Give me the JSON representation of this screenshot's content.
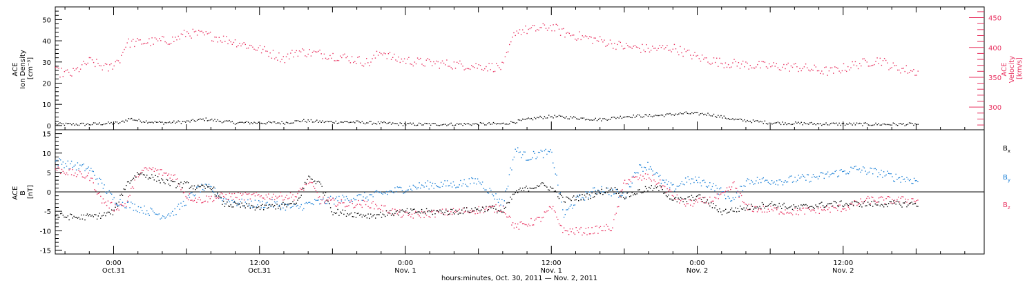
{
  "colors": {
    "density": "#000000",
    "velocity": "#e8305f",
    "bx": "#000000",
    "by": "#1a7fd6",
    "bz": "#e8305f"
  },
  "xaxis": {
    "title": "hours:minutes, Oct. 30, 2011 — Nov. 2, 2011",
    "range_hours": [
      -4.8,
      71.6
    ],
    "ticks": [
      {
        "h": 0,
        "time": "0:00",
        "date": "Oct.31"
      },
      {
        "h": 12,
        "time": "12:00",
        "date": "Oct.31"
      },
      {
        "h": 24,
        "time": "0:00",
        "date": "Nov. 1"
      },
      {
        "h": 36,
        "time": "12:00",
        "date": "Nov. 1"
      },
      {
        "h": 48,
        "time": "0:00",
        "date": "Nov. 2"
      },
      {
        "h": 60,
        "time": "12:00",
        "date": "Nov. 2"
      }
    ]
  },
  "chart_data": [
    {
      "type": "scatter",
      "ylabel_lines": [
        "ACE",
        "Ion Density",
        "[cm⁻³]"
      ],
      "y2label_lines": [
        "ACE",
        "Velocity",
        "[km/s]"
      ],
      "ylim": [
        -2,
        56
      ],
      "yticks": [
        0,
        10,
        20,
        30,
        40,
        50
      ],
      "y2lim": [
        262,
        468
      ],
      "y2ticks": [
        300,
        350,
        400,
        450
      ],
      "series": [
        {
          "key": "density",
          "axis": "left",
          "color": "#000000",
          "noise": 0.7,
          "points": [
            [
              -4.8,
              0.8
            ],
            [
              -2,
              0.8
            ],
            [
              0.5,
              1.5
            ],
            [
              1.3,
              3.5
            ],
            [
              2,
              2.5
            ],
            [
              4,
              1.5
            ],
            [
              6,
              2
            ],
            [
              7.5,
              3.2
            ],
            [
              8.5,
              2.5
            ],
            [
              10,
              1.5
            ],
            [
              14,
              1.5
            ],
            [
              15.5,
              2.5
            ],
            [
              17,
              2
            ],
            [
              20,
              1.8
            ],
            [
              24,
              0.8
            ],
            [
              28,
              0.8
            ],
            [
              32,
              1
            ],
            [
              35,
              4
            ],
            [
              36,
              4.5
            ],
            [
              38,
              3.8
            ],
            [
              40,
              3
            ],
            [
              42,
              4.5
            ],
            [
              45,
              5
            ],
            [
              47,
              6
            ],
            [
              49,
              5.5
            ],
            [
              51,
              3
            ],
            [
              54,
              1.5
            ],
            [
              58,
              1
            ],
            [
              62,
              0.8
            ],
            [
              66,
              0.8
            ]
          ]
        },
        {
          "key": "velocity",
          "axis": "right",
          "color": "#e8305f",
          "noise": 8,
          "points": [
            [
              -4.8,
              360
            ],
            [
              -3.5,
              356
            ],
            [
              -2,
              378
            ],
            [
              -0.5,
              365
            ],
            [
              0.5,
              382
            ],
            [
              1,
              408
            ],
            [
              3,
              410
            ],
            [
              5,
              414
            ],
            [
              6,
              425
            ],
            [
              8,
              420
            ],
            [
              10,
              410
            ],
            [
              12,
              398
            ],
            [
              14,
              382
            ],
            [
              15,
              394
            ],
            [
              17,
              390
            ],
            [
              19,
              384
            ],
            [
              21,
              375
            ],
            [
              22,
              395
            ],
            [
              23,
              382
            ],
            [
              25,
              376
            ],
            [
              28,
              372
            ],
            [
              31,
              368
            ],
            [
              32,
              368
            ],
            [
              33,
              428
            ],
            [
              35,
              432
            ],
            [
              36,
              436
            ],
            [
              37,
              425
            ],
            [
              40,
              412
            ],
            [
              42,
              402
            ],
            [
              44,
              398
            ],
            [
              46,
              400
            ],
            [
              48,
              384
            ],
            [
              50,
              375
            ],
            [
              53,
              370
            ],
            [
              56,
              368
            ],
            [
              59,
              360
            ],
            [
              61,
              372
            ],
            [
              63,
              380
            ],
            [
              64,
              368
            ],
            [
              66,
              360
            ]
          ]
        }
      ]
    },
    {
      "type": "scatter",
      "ylabel_lines": [
        "ACE",
        "B",
        "[nT]"
      ],
      "ylim": [
        -16,
        16
      ],
      "yticks": [
        -15,
        -10,
        -5,
        0,
        5,
        10,
        15
      ],
      "zero_line": true,
      "legend": [
        {
          "label": "B",
          "sub": "x",
          "color": "#000000"
        },
        {
          "label": "B",
          "sub": "y",
          "color": "#1a7fd6"
        },
        {
          "label": "B",
          "sub": "z",
          "color": "#e8305f"
        }
      ],
      "series": [
        {
          "key": "by",
          "name": "By",
          "color": "#1a7fd6",
          "noise": 1.1,
          "points": [
            [
              -4.8,
              8
            ],
            [
              -3.5,
              7
            ],
            [
              -2,
              6
            ],
            [
              -1,
              2
            ],
            [
              0,
              -2
            ],
            [
              1,
              -3
            ],
            [
              2,
              -4
            ],
            [
              3,
              -5
            ],
            [
              4,
              -6
            ],
            [
              5,
              -5
            ],
            [
              6,
              -2
            ],
            [
              7,
              1
            ],
            [
              8,
              1
            ],
            [
              9,
              -2
            ],
            [
              11,
              -3
            ],
            [
              13,
              -3
            ],
            [
              15,
              -4
            ],
            [
              16,
              -3
            ],
            [
              18,
              -2
            ],
            [
              21,
              -1
            ],
            [
              24,
              1
            ],
            [
              26,
              2
            ],
            [
              28,
              2
            ],
            [
              30,
              3
            ],
            [
              31,
              0
            ],
            [
              32,
              -3
            ],
            [
              33,
              11
            ],
            [
              34,
              9
            ],
            [
              35,
              10
            ],
            [
              36,
              10
            ],
            [
              37,
              -6
            ],
            [
              38,
              -2
            ],
            [
              40,
              1
            ],
            [
              42,
              -1
            ],
            [
              43,
              6
            ],
            [
              44,
              7
            ],
            [
              45,
              3
            ],
            [
              46,
              1
            ],
            [
              47,
              3
            ],
            [
              48,
              3
            ],
            [
              49,
              2
            ],
            [
              50,
              0
            ],
            [
              51,
              -2
            ],
            [
              52,
              3
            ],
            [
              55,
              3
            ],
            [
              58,
              4
            ],
            [
              61,
              6
            ],
            [
              63,
              5
            ],
            [
              64,
              4
            ],
            [
              66,
              3
            ]
          ]
        },
        {
          "key": "bz",
          "name": "Bz",
          "color": "#e8305f",
          "noise": 1.0,
          "points": [
            [
              -4.8,
              6
            ],
            [
              -3.5,
              5
            ],
            [
              -2,
              4
            ],
            [
              -1,
              -2
            ],
            [
              0,
              -4
            ],
            [
              1,
              -3
            ],
            [
              2,
              5
            ],
            [
              3,
              6
            ],
            [
              4,
              5
            ],
            [
              5,
              4
            ],
            [
              6,
              -1
            ],
            [
              7,
              -2
            ],
            [
              9,
              -1
            ],
            [
              12,
              -1
            ],
            [
              15,
              -1
            ],
            [
              16,
              3
            ],
            [
              17,
              -2
            ],
            [
              19,
              -3
            ],
            [
              21,
              -3
            ],
            [
              24,
              -6
            ],
            [
              28,
              -5
            ],
            [
              32,
              -4
            ],
            [
              33,
              -9
            ],
            [
              34,
              -8
            ],
            [
              35,
              -7
            ],
            [
              36,
              -4
            ],
            [
              37,
              -10
            ],
            [
              39,
              -10
            ],
            [
              41,
              -9
            ],
            [
              42,
              3
            ],
            [
              44,
              4
            ],
            [
              45,
              2
            ],
            [
              46,
              -1
            ],
            [
              47,
              -3
            ],
            [
              49,
              -2
            ],
            [
              50,
              -1
            ],
            [
              51,
              2
            ],
            [
              52,
              -4
            ],
            [
              56,
              -5
            ],
            [
              60,
              -4
            ],
            [
              62,
              -2
            ],
            [
              64,
              -2
            ],
            [
              66,
              -2
            ]
          ]
        },
        {
          "key": "bx",
          "name": "Bx",
          "color": "#000000",
          "noise": 0.8,
          "points": [
            [
              -4.8,
              -6
            ],
            [
              -3,
              -6.5
            ],
            [
              -1,
              -6
            ],
            [
              0,
              -5
            ],
            [
              1,
              2
            ],
            [
              2,
              5
            ],
            [
              3,
              4
            ],
            [
              4,
              3
            ],
            [
              5,
              2
            ],
            [
              6,
              2
            ],
            [
              7,
              1
            ],
            [
              8,
              1.5
            ],
            [
              9,
              -3
            ],
            [
              12,
              -4
            ],
            [
              15,
              -3
            ],
            [
              16,
              4
            ],
            [
              17,
              2
            ],
            [
              18,
              -5
            ],
            [
              21,
              -6
            ],
            [
              24,
              -5
            ],
            [
              28,
              -5
            ],
            [
              31,
              -4
            ],
            [
              32,
              -5
            ],
            [
              33,
              0
            ],
            [
              35,
              2
            ],
            [
              36,
              1
            ],
            [
              37,
              -2
            ],
            [
              39,
              -1
            ],
            [
              41,
              1
            ],
            [
              42,
              -1
            ],
            [
              44,
              1
            ],
            [
              45,
              1
            ],
            [
              46,
              -2
            ],
            [
              47,
              -2
            ],
            [
              48,
              -1
            ],
            [
              49,
              -3
            ],
            [
              50,
              -5
            ],
            [
              52,
              -4
            ],
            [
              54,
              -3
            ],
            [
              56,
              -4
            ],
            [
              59,
              -3
            ],
            [
              62,
              -3
            ],
            [
              64,
              -3
            ],
            [
              66,
              -3
            ]
          ]
        }
      ]
    }
  ]
}
